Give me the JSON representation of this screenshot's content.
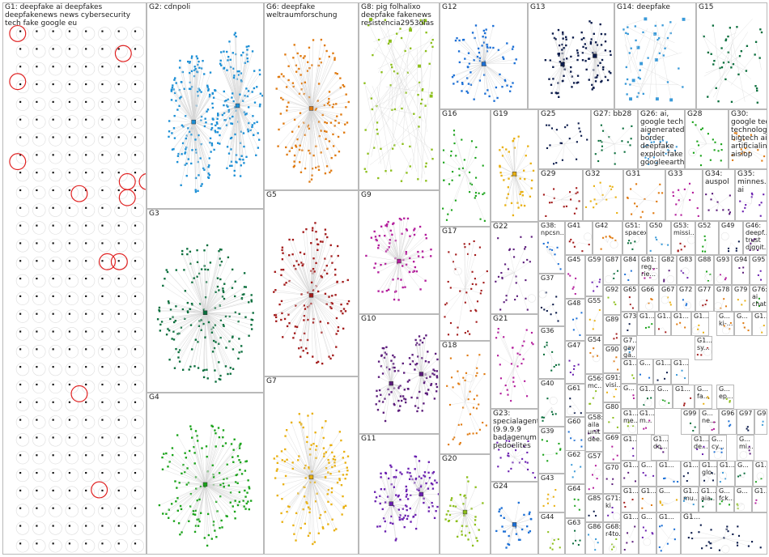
{
  "groups": [
    {
      "id": "G1",
      "label": "G1: deepfake ai deepfakes deepfakenews news cybersecurity tech fake google eu",
      "color": "#111111"
    },
    {
      "id": "G2",
      "label": "G2: cdnpoli",
      "color": "#1b8fd6"
    },
    {
      "id": "G3",
      "label": "G3",
      "color": "#0a6e3c"
    },
    {
      "id": "G4",
      "label": "G4",
      "color": "#19a319"
    },
    {
      "id": "G5",
      "label": "G5",
      "color": "#a31b1b"
    },
    {
      "id": "G6",
      "label": "G6: deepfake weltraumforschung",
      "color": "#e07a10"
    },
    {
      "id": "G7",
      "label": "G7",
      "color": "#e9b010"
    },
    {
      "id": "G8",
      "label": "G8: pig folhalixo deepfake fakenews resistencia2953dias",
      "color": "#8cbf1a"
    },
    {
      "id": "G9",
      "label": "G9",
      "color": "#b31b9b"
    },
    {
      "id": "G10",
      "label": "G10",
      "color": "#5a1a7a"
    },
    {
      "id": "G11",
      "label": "G11",
      "color": "#6a1fb0"
    },
    {
      "id": "G12",
      "label": "G12",
      "color": "#1b6fd6"
    },
    {
      "id": "G13",
      "label": "G13",
      "color": "#0a1a4a"
    },
    {
      "id": "G14",
      "label": "G14: deepfake",
      "color": "#3a9ad9"
    },
    {
      "id": "G15",
      "label": "G15",
      "color": "#0a6e3c"
    },
    {
      "id": "G16",
      "label": "G16",
      "color": "#19a319"
    },
    {
      "id": "G17",
      "label": "G17",
      "color": "#a31b1b"
    },
    {
      "id": "G18",
      "label": "G18",
      "color": "#e07a10"
    },
    {
      "id": "G19",
      "label": "G19",
      "color": "#e9b010"
    },
    {
      "id": "G20",
      "label": "G20",
      "color": "#8cbf1a"
    },
    {
      "id": "G21",
      "label": "G21",
      "color": "#b31b9b"
    },
    {
      "id": "G22",
      "label": "G22",
      "color": "#5a1a7a"
    },
    {
      "id": "G23",
      "label": "G23:\nspecialagent\n(9.9.9.9\nbadagenum\npedoelites",
      "color": "#6a1fb0"
    },
    {
      "id": "G24",
      "label": "G24",
      "color": "#1b6fd6"
    },
    {
      "id": "G25",
      "label": "G25",
      "color": "#0a1a4a"
    },
    {
      "id": "G26",
      "label": "G26: ai,\ngoogle tech\naigenerated\nborder\ndeepfake\nexploit fake\ngoogleearth...",
      "color": "#3a9ad9"
    },
    {
      "id": "G27",
      "label": "G27: bb28",
      "color": "#0a6e3c"
    },
    {
      "id": "G28",
      "label": "G28",
      "color": "#19a319"
    },
    {
      "id": "G29",
      "label": "G29",
      "color": "#a31b1b"
    },
    {
      "id": "G30",
      "label": "G30:\ngoogle tech\ntechnology\nbigtech ai\nartificialint...\naislop",
      "color": "#e07a10"
    },
    {
      "id": "G31",
      "label": "G31",
      "color": "#e07a10"
    },
    {
      "id": "G32",
      "label": "G32",
      "color": "#e9b010"
    },
    {
      "id": "G33",
      "label": "G33",
      "color": "#b31b9b"
    },
    {
      "id": "G34",
      "label": "G34:\nauspol",
      "color": "#5a1a7a"
    },
    {
      "id": "G35",
      "label": "G35:\nminnes...\nai",
      "color": "#6a1fb0"
    },
    {
      "id": "G36",
      "label": "G36",
      "color": "#0a6e3c"
    },
    {
      "id": "G37",
      "label": "G37",
      "color": "#0a1a4a"
    },
    {
      "id": "G38",
      "label": "G38:\nnpcsn...",
      "color": "#1b6fd6"
    },
    {
      "id": "G39",
      "label": "G39",
      "color": "#19a319"
    },
    {
      "id": "G40",
      "label": "G40",
      "color": "#0a6e3c"
    },
    {
      "id": "G41",
      "label": "G41",
      "color": "#a31b1b"
    },
    {
      "id": "G42",
      "label": "G42",
      "color": "#e07a10"
    },
    {
      "id": "G43",
      "label": "G43",
      "color": "#e9b010"
    },
    {
      "id": "G44",
      "label": "G44",
      "color": "#8cbf1a"
    },
    {
      "id": "G45",
      "label": "G45",
      "color": "#b31b9b"
    },
    {
      "id": "G46",
      "label": "G46:\ndeepf...\ntrust\ndignit...",
      "color": "#5a1a7a"
    },
    {
      "id": "G47",
      "label": "G47",
      "color": "#6a1fb0"
    },
    {
      "id": "G48",
      "label": "G48",
      "color": "#1b6fd6"
    },
    {
      "id": "G49",
      "label": "G49",
      "color": "#0a1a4a"
    },
    {
      "id": "G50",
      "label": "G50",
      "color": "#3a9ad9"
    },
    {
      "id": "G51",
      "label": "G51:\nspacex",
      "color": "#0a6e3c"
    },
    {
      "id": "G52",
      "label": "G52",
      "color": "#19a319"
    },
    {
      "id": "G53",
      "label": "G53:\nmissi...",
      "color": "#a31b1b"
    },
    {
      "id": "G54",
      "label": "G54",
      "color": "#e07a10"
    },
    {
      "id": "G55",
      "label": "G55",
      "color": "#e9b010"
    },
    {
      "id": "G56",
      "label": "G56:\nmc...",
      "color": "#8cbf1a"
    },
    {
      "id": "G57",
      "label": "G57",
      "color": "#b31b9b"
    },
    {
      "id": "G58",
      "label": "G58:\naila\nunit\ndee...",
      "color": "#5a1a7a"
    },
    {
      "id": "G59",
      "label": "G59",
      "color": "#6a1fb0"
    },
    {
      "id": "G60",
      "label": "G60",
      "color": "#1b6fd6"
    },
    {
      "id": "G61",
      "label": "G61",
      "color": "#0a1a4a"
    },
    {
      "id": "G62",
      "label": "G62",
      "color": "#3a9ad9"
    },
    {
      "id": "G63",
      "label": "G63",
      "color": "#0a6e3c"
    },
    {
      "id": "G64",
      "label": "G64",
      "color": "#19a319"
    },
    {
      "id": "G65",
      "label": "G65",
      "color": "#a31b1b"
    },
    {
      "id": "G66",
      "label": "G66",
      "color": "#e07a10"
    },
    {
      "id": "G67",
      "label": "G67",
      "color": "#e9b010"
    },
    {
      "id": "G68",
      "label": "G68:\nr4to...",
      "color": "#8cbf1a"
    },
    {
      "id": "G69",
      "label": "G69",
      "color": "#b31b9b"
    },
    {
      "id": "G70",
      "label": "G70",
      "color": "#5a1a7a"
    },
    {
      "id": "G71",
      "label": "G71:\nki",
      "color": "#6a1fb0"
    },
    {
      "id": "G72",
      "label": "G72",
      "color": "#1b6fd6"
    },
    {
      "id": "G73",
      "label": "G73",
      "color": "#0a1a4a"
    },
    {
      "id": "G74",
      "label": "G7...\ngay\nga...",
      "color": "#3a9ad9"
    },
    {
      "id": "G76",
      "label": "G76:\nai\nchat...",
      "color": "#19a319"
    },
    {
      "id": "G77",
      "label": "G77",
      "color": "#a31b1b"
    },
    {
      "id": "G78",
      "label": "G78",
      "color": "#e07a10"
    },
    {
      "id": "G79",
      "label": "G79",
      "color": "#e9b010"
    },
    {
      "id": "G80",
      "label": "G80",
      "color": "#8cbf1a"
    },
    {
      "id": "G81",
      "label": "G81:\nreg...\nrie...",
      "color": "#b31b9b"
    },
    {
      "id": "G82",
      "label": "G82",
      "color": "#5a1a7a"
    },
    {
      "id": "G83",
      "label": "G83",
      "color": "#6a1fb0"
    },
    {
      "id": "G84",
      "label": "G84",
      "color": "#1b6fd6"
    },
    {
      "id": "G85",
      "label": "G85",
      "color": "#0a1a4a"
    },
    {
      "id": "G86",
      "label": "G86",
      "color": "#3a9ad9"
    },
    {
      "id": "G87",
      "label": "G87",
      "color": "#0a6e3c"
    },
    {
      "id": "G88",
      "label": "G88",
      "color": "#19a319"
    },
    {
      "id": "G89",
      "label": "G89",
      "color": "#a31b1b"
    },
    {
      "id": "G90",
      "label": "G90",
      "color": "#e07a10"
    },
    {
      "id": "G91",
      "label": "G91:\nvisi...",
      "color": "#e9b010"
    },
    {
      "id": "G92",
      "label": "G92",
      "color": "#8cbf1a"
    },
    {
      "id": "G93",
      "label": "G93",
      "color": "#b31b9b"
    },
    {
      "id": "G94",
      "label": "G94",
      "color": "#5a1a7a"
    },
    {
      "id": "G95",
      "label": "G95",
      "color": "#6a1fb0"
    },
    {
      "id": "G96",
      "label": "G96",
      "color": "#1b6fd6"
    },
    {
      "id": "G97",
      "label": "G97",
      "color": "#0a1a4a"
    },
    {
      "id": "G98",
      "label": "G98",
      "color": "#3a9ad9"
    },
    {
      "id": "G99",
      "label": "G99",
      "color": "#0a6e3c"
    },
    {
      "id": "Gs1",
      "label": "G1...",
      "color": "#19a319"
    },
    {
      "id": "Gs2",
      "label": "G1...",
      "color": "#a31b1b"
    },
    {
      "id": "Gs3",
      "label": "G1...",
      "color": "#e07a10"
    },
    {
      "id": "Gs4",
      "label": "G1...",
      "color": "#e9b010"
    },
    {
      "id": "Gs5",
      "label": "G1...\nme...",
      "color": "#8cbf1a"
    },
    {
      "id": "Gs6",
      "label": "G1...\nm...",
      "color": "#b31b9b"
    },
    {
      "id": "Gs7",
      "label": "G1...\ndo...",
      "color": "#5a1a7a"
    },
    {
      "id": "Gs8",
      "label": "G1...\nde...",
      "color": "#6a1fb0"
    },
    {
      "id": "Gs9",
      "label": "G...\ncy...",
      "color": "#1b6fd6"
    },
    {
      "id": "Gs10",
      "label": "G1...\nglo...",
      "color": "#0a1a4a"
    },
    {
      "id": "Gs11",
      "label": "G1...\nmu...",
      "color": "#3a9ad9"
    },
    {
      "id": "Gs12",
      "label": "G1...\naia...",
      "color": "#0a6e3c"
    },
    {
      "id": "Gs13",
      "label": "G...\nfck...",
      "color": "#19a319"
    },
    {
      "id": "Gs14",
      "label": "G1...\nsy...",
      "color": "#a31b1b"
    },
    {
      "id": "Gs15",
      "label": "G...\nki-...",
      "color": "#e07a10"
    },
    {
      "id": "Gs16",
      "label": "G...\nfa...",
      "color": "#e9b010"
    },
    {
      "id": "Gs17",
      "label": "G...\nep...",
      "color": "#8cbf1a"
    },
    {
      "id": "Gs18",
      "label": "G...\nne...",
      "color": "#b31b9b"
    },
    {
      "id": "Gs19",
      "label": "G...\nmi...",
      "color": "#5a1a7a"
    },
    {
      "id": "Gs20",
      "label": "G1...",
      "color": "#6a1fb0"
    },
    {
      "id": "Gs21",
      "label": "G...",
      "color": "#1b6fd6"
    },
    {
      "id": "Gs22",
      "label": "G1...",
      "color": "#0a1a4a"
    },
    {
      "id": "Gs23",
      "label": "G1...",
      "color": "#3a9ad9"
    },
    {
      "id": "Gs24",
      "label": "G1...",
      "color": "#0a6e3c"
    },
    {
      "id": "Gs25",
      "label": "G...",
      "color": "#19a319"
    },
    {
      "id": "Gs26",
      "label": "G1...",
      "color": "#a31b1b"
    },
    {
      "id": "Gs27",
      "label": "G...",
      "color": "#e07a10"
    },
    {
      "id": "Gs28",
      "label": "G1...",
      "color": "#e9b010"
    },
    {
      "id": "Gs29",
      "label": "G1...",
      "color": "#8cbf1a"
    },
    {
      "id": "Gs30",
      "label": "G...",
      "color": "#b31b9b"
    },
    {
      "id": "Gs31",
      "label": "G1...",
      "color": "#5a1a7a"
    },
    {
      "id": "Gs32",
      "label": "G...",
      "color": "#6a1fb0"
    },
    {
      "id": "Gs33",
      "label": "G1...",
      "color": "#1b6fd6"
    },
    {
      "id": "Gs34",
      "label": "G1...",
      "color": "#0a1a4a"
    },
    {
      "id": "Gs35",
      "label": "G1...",
      "color": "#3a9ad9"
    },
    {
      "id": "Gs36",
      "label": "G...",
      "color": "#0a6e3c"
    },
    {
      "id": "Gs37",
      "label": "G1...",
      "color": "#19a319"
    },
    {
      "id": "Gs38",
      "label": "G1...",
      "color": "#a31b1b"
    },
    {
      "id": "Gs39",
      "label": "G1...",
      "color": "#e07a10"
    },
    {
      "id": "Gs40",
      "label": "G...",
      "color": "#e9b010"
    },
    {
      "id": "Gs41",
      "label": "G...",
      "color": "#8cbf1a"
    },
    {
      "id": "Gs42",
      "label": "G1...",
      "color": "#b31b9b"
    },
    {
      "id": "Gs43",
      "label": "G1...",
      "color": "#5a1a7a"
    },
    {
      "id": "Gs44",
      "label": "G...",
      "color": "#6a1fb0"
    },
    {
      "id": "Gs45",
      "label": "G1...",
      "color": "#1b6fd6"
    },
    {
      "id": "Gs46",
      "label": "G1...",
      "color": "#0a1a4a"
    }
  ]
}
